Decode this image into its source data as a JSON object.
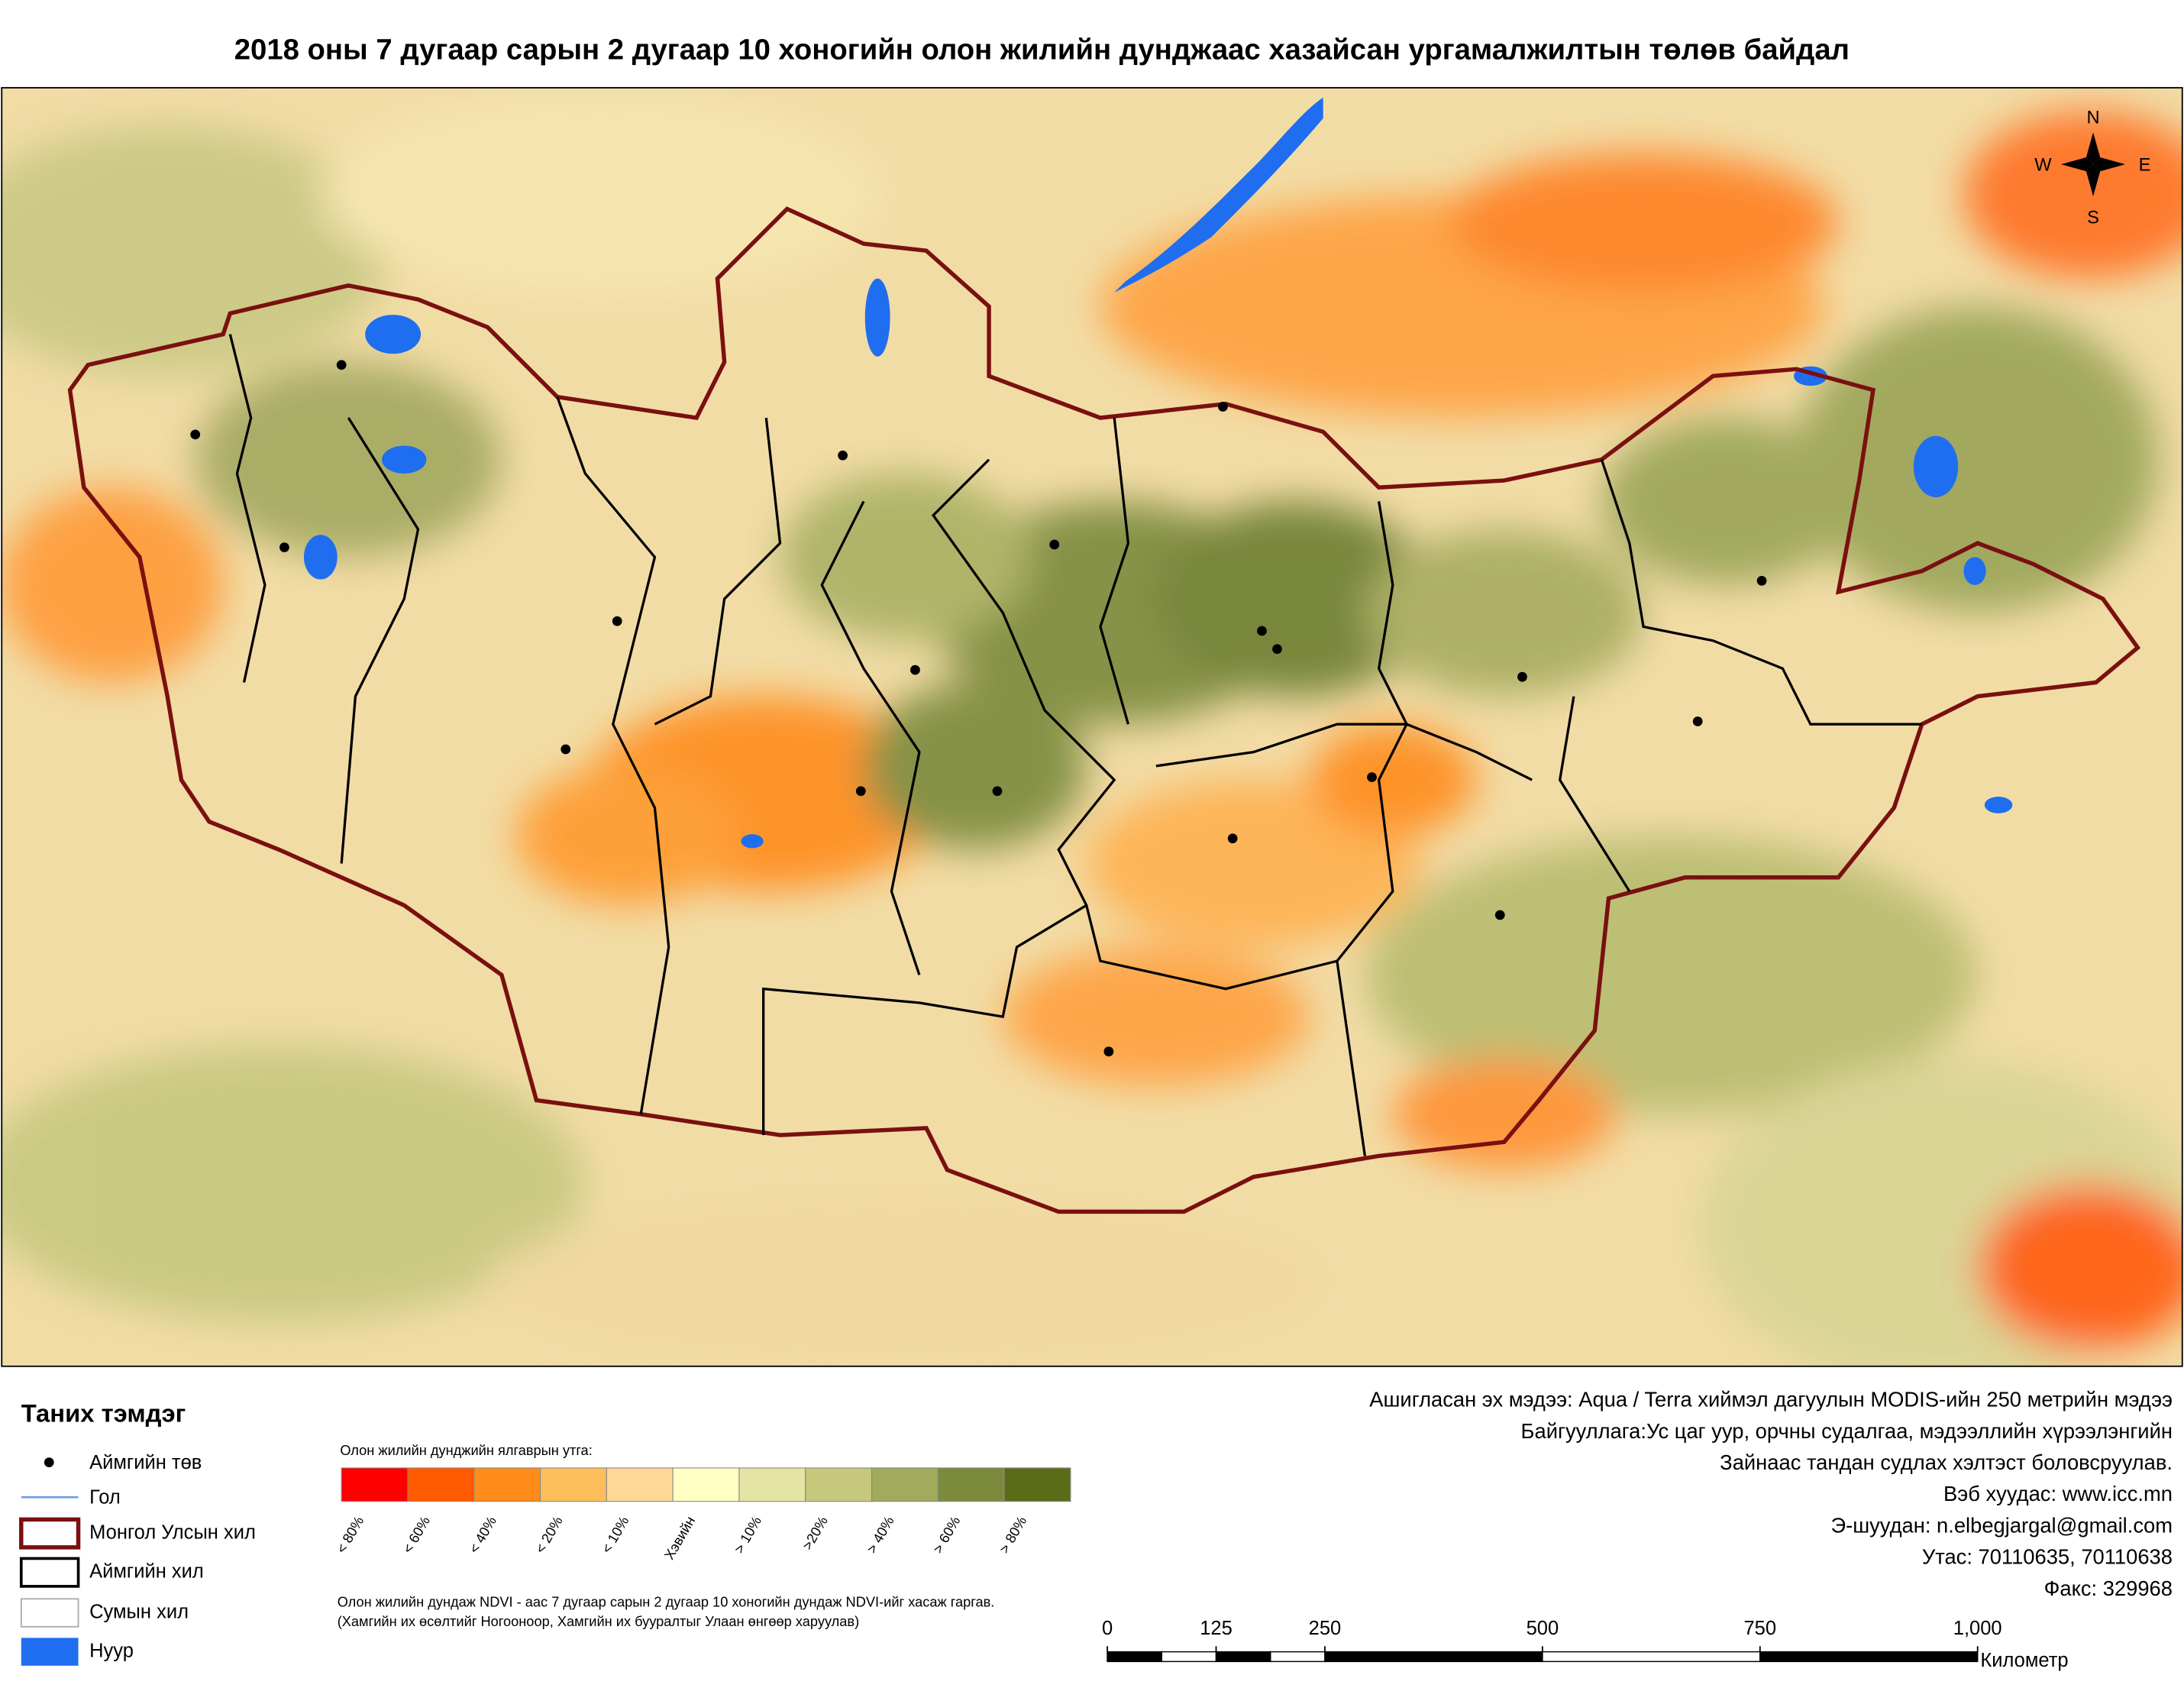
{
  "title": "2018 оны 7 дугаар сарын 2 дугаар 10 хоногийн олон жилийн дунджаас хазайсан ургамалжилтын төлөв байдал",
  "compass": {
    "n": "N",
    "e": "E",
    "s": "S",
    "w": "W"
  },
  "legend": {
    "title": "Таних тэмдэг",
    "items": [
      {
        "label": "Аймгийн төв"
      },
      {
        "label": "Гол"
      },
      {
        "label": "Монгол Улсын хил"
      },
      {
        "label": "Аймгийн хил"
      },
      {
        "label": "Сумын хил"
      },
      {
        "label": "Нуур"
      }
    ]
  },
  "color_scale": {
    "title": "Олон жилийн дунджийн ялгаврын утга:",
    "classes": [
      {
        "label": "< 80%",
        "color": "#ff0000"
      },
      {
        "label": "< 60%",
        "color": "#ff5a00"
      },
      {
        "label": "< 40%",
        "color": "#ff8c1a"
      },
      {
        "label": "< 20%",
        "color": "#ffbe5c"
      },
      {
        "label": "< 10%",
        "color": "#ffd898"
      },
      {
        "label": "Хэвийн",
        "color": "#ffffc4"
      },
      {
        "label": "> 10%",
        "color": "#e4e4a4"
      },
      {
        "label": ">20%",
        "color": "#c6c87c"
      },
      {
        "label": "> 40%",
        "color": "#a2aa5c"
      },
      {
        "label": "> 60%",
        "color": "#7c8a3c"
      },
      {
        "label": "> 80%",
        "color": "#5a6c18"
      }
    ]
  },
  "notes": [
    "Олон жилийн дундаж NDVI - аас 7 дугаар сарын 2 дугаар 10 хоногийн дундаж NDVI-ийг хасаж гаргав.",
    "(Хамгийн их өсөлтийг Ногооноор,  Хамгийн их бууралтыг Улаан өнгөөр харуулав)"
  ],
  "credits": [
    "Ашигласан эх мэдээ: Aqua / Terra хиймэл дагуулын MODIS-ийн 250 метрийн мэдээ",
    "Байгууллага:Ус цаг уур, орчны судалгаа, мэдээллийн хүрээлэнгийн",
    "Зайнаас тандан судлах хэлтэст боловсруулав.",
    "Вэб хуудас: www.icc.mn",
    "Э-шуудан: n.elbegjargal@gmail.com",
    "Утас: 70110635, 70110638",
    "Факс: 329968"
  ],
  "scale_bar": {
    "ticks": [
      0,
      125,
      250,
      500,
      750,
      {
        "value": 1000,
        "label": "1,000"
      }
    ],
    "unit": "Километр"
  }
}
